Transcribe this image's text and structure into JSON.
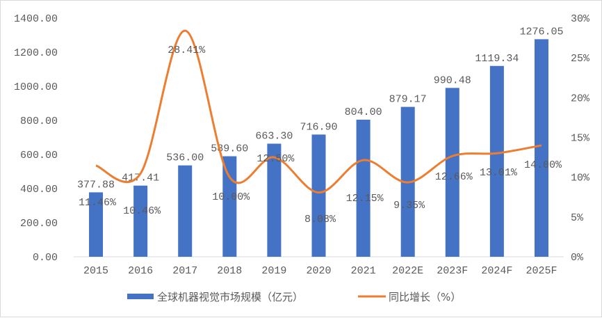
{
  "chart_data": {
    "type": "bar+line",
    "categories": [
      "2015",
      "2016",
      "2017",
      "2018",
      "2019",
      "2020",
      "2021",
      "2022E",
      "2023F",
      "2024F",
      "2025F"
    ],
    "series": [
      {
        "name": "全球机器视觉市场规模（亿元）",
        "type": "bar",
        "axis": "left",
        "color": "#4472C4",
        "values": [
          377.88,
          417.41,
          536.0,
          589.6,
          663.3,
          716.9,
          804.0,
          879.17,
          990.48,
          1119.34,
          1276.05
        ],
        "labels": [
          "377.88",
          "417.41",
          "536.00",
          "589.60",
          "663.30",
          "716.90",
          "804.00",
          "879.17",
          "990.48",
          "1119.34",
          "1276.05"
        ]
      },
      {
        "name": "同比增长（%）",
        "type": "line",
        "smooth": true,
        "axis": "right",
        "color": "#ED7D31",
        "values": [
          11.46,
          10.46,
          28.41,
          10.0,
          12.5,
          8.08,
          12.15,
          9.35,
          12.66,
          13.01,
          14.0
        ],
        "labels": [
          "11.46%",
          "10.46%",
          "28.41%",
          "10.00%",
          "12.50%",
          "8.08%",
          "12.15%",
          "9.35%",
          "12.66%",
          "13.01%",
          "14.00%"
        ]
      }
    ],
    "ylim": [
      0,
      1400
    ],
    "yticks": [
      "0.00",
      "200.00",
      "400.00",
      "600.00",
      "800.00",
      "1000.00",
      "1200.00",
      "1400.00"
    ],
    "y2lim": [
      0,
      30
    ],
    "y2ticks": [
      "0%",
      "5%",
      "10%",
      "15%",
      "20%",
      "25%",
      "30%"
    ],
    "grid": false,
    "legend": "bottom"
  }
}
